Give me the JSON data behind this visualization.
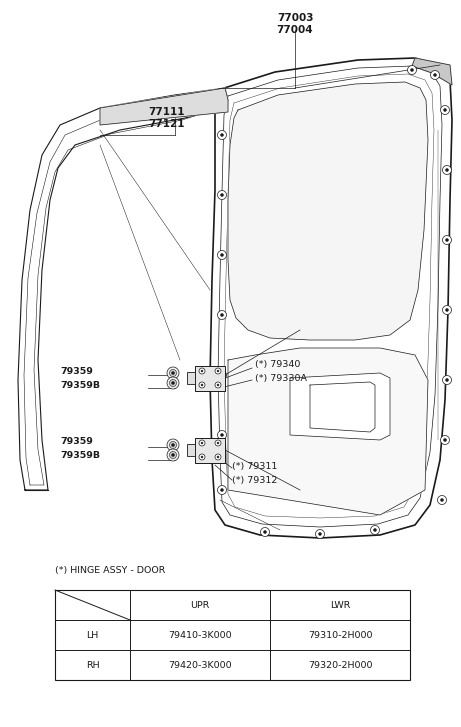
{
  "bg_color": "#ffffff",
  "line_color": "#1a1a1a",
  "fig_width": 4.61,
  "fig_height": 7.27,
  "dpi": 100,
  "table_legend": "(*) HINGE ASSY - DOOR",
  "table": {
    "col_headers": [
      "",
      "UPR",
      "LWR"
    ],
    "row_headers": [
      "LH",
      "RH"
    ],
    "data": [
      [
        "79410-3K000",
        "79310-2H000"
      ],
      [
        "79420-3K000",
        "79320-2H000"
      ]
    ]
  },
  "part_labels": {
    "77003": "77003",
    "77004": "77004",
    "77111": "77111",
    "77121": "77121",
    "79340": "(*) 79340",
    "79330A": "(*) 79330A",
    "79359_u": "79359",
    "79359B_u": "79359B",
    "79359_l": "79359",
    "79359B_l": "79359B",
    "79311": "(*) 79311",
    "79312": "(*) 79312"
  }
}
